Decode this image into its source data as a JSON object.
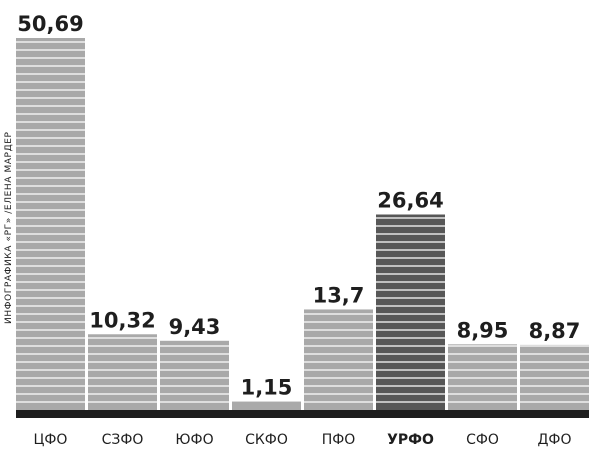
{
  "credit": "ИНФОГРАФИКА «РГ» /ЕЛЕНА МАРДЕР",
  "chart_data": {
    "type": "bar",
    "title": "",
    "xlabel": "",
    "ylabel": "",
    "ylim": [
      0,
      50.69
    ],
    "grid": false,
    "legend": "none",
    "categories": [
      "ЦФО",
      "СЗФО",
      "ЮФО",
      "СКФО",
      "ПФО",
      "УРФО",
      "СФО",
      "ДФО"
    ],
    "values": [
      50.69,
      10.32,
      9.43,
      1.15,
      13.7,
      26.64,
      8.95,
      8.87
    ],
    "value_labels": [
      "50,69",
      "10,32",
      "9,43",
      "1,15",
      "13,7",
      "26,64",
      "8,95",
      "8,87"
    ],
    "highlight_category": "УРФО",
    "colors": {
      "bar": "#a9a9a9",
      "bar_highlight": "#575757",
      "stripe": "#ffffff",
      "baseline": "#1e1e1e",
      "text": "#1e1e1e"
    }
  }
}
